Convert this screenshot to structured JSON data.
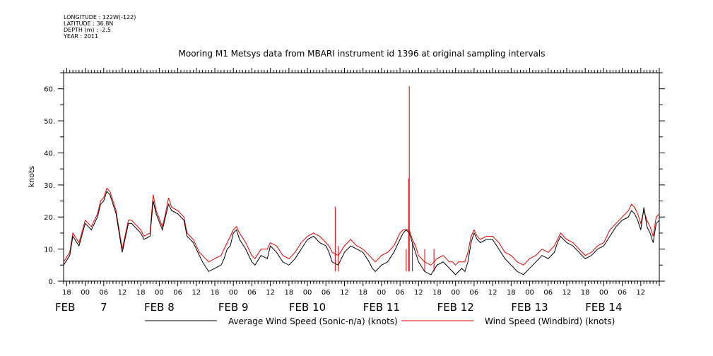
{
  "header": {
    "lines": [
      "LONGITUDE : 122W(-122)",
      "LATITUDE : 36.8N",
      "DEPTH (m) : -2.5",
      "YEAR : 2011"
    ]
  },
  "chart_data": {
    "type": "line",
    "title": "Mooring M1 Metsys data from MBARI instrument id 1396 at original sampling intervals",
    "ylabel": "knots",
    "xlabel": "",
    "ylim": [
      0,
      65
    ],
    "yticks": [
      0,
      10,
      20,
      30,
      40,
      50,
      60
    ],
    "ytick_labels": [
      "0.",
      "10.",
      "20.",
      "30.",
      "40.",
      "50.",
      "60."
    ],
    "xlim_hours": [
      -7,
      186
    ],
    "x_ticks": [
      {
        "h": -6,
        "label": "18"
      },
      {
        "h": 0,
        "label": "00"
      },
      {
        "h": 6,
        "label": "06"
      },
      {
        "h": 12,
        "label": "12"
      },
      {
        "h": 18,
        "label": "18"
      },
      {
        "h": 24,
        "label": "00"
      },
      {
        "h": 30,
        "label": "06"
      },
      {
        "h": 36,
        "label": "12"
      },
      {
        "h": 42,
        "label": "18"
      },
      {
        "h": 48,
        "label": "00"
      },
      {
        "h": 54,
        "label": "06"
      },
      {
        "h": 60,
        "label": "12"
      },
      {
        "h": 66,
        "label": "18"
      },
      {
        "h": 72,
        "label": "00"
      },
      {
        "h": 78,
        "label": "06"
      },
      {
        "h": 84,
        "label": "12"
      },
      {
        "h": 90,
        "label": "18"
      },
      {
        "h": 96,
        "label": "00"
      },
      {
        "h": 102,
        "label": "06"
      },
      {
        "h": 108,
        "label": "12"
      },
      {
        "h": 114,
        "label": "18"
      },
      {
        "h": 120,
        "label": "00"
      },
      {
        "h": 126,
        "label": "06"
      },
      {
        "h": 132,
        "label": "12"
      },
      {
        "h": 138,
        "label": "18"
      },
      {
        "h": 144,
        "label": "00"
      },
      {
        "h": 150,
        "label": "06"
      },
      {
        "h": 156,
        "label": "12"
      },
      {
        "h": 162,
        "label": "18"
      },
      {
        "h": 168,
        "label": "00"
      },
      {
        "h": 174,
        "label": "06"
      },
      {
        "h": 180,
        "label": "12"
      }
    ],
    "date_labels": [
      {
        "h": -6,
        "label": "FEB",
        "anchor": "start"
      },
      {
        "h": 6,
        "label": "7",
        "anchor": "middle"
      },
      {
        "h": 24,
        "label": "FEB 8",
        "anchor": "middle"
      },
      {
        "h": 48,
        "label": "FEB 9",
        "anchor": "middle"
      },
      {
        "h": 72,
        "label": "FEB 10",
        "anchor": "middle"
      },
      {
        "h": 96,
        "label": "FEB 11",
        "anchor": "middle"
      },
      {
        "h": 120,
        "label": "FEB 12",
        "anchor": "middle"
      },
      {
        "h": 144,
        "label": "FEB 13",
        "anchor": "middle"
      },
      {
        "h": 168,
        "label": "FEB 14",
        "anchor": "middle"
      }
    ],
    "series": [
      {
        "name": "Average Wind Speed (Sonic-n/a) (knots)",
        "color": "#000000",
        "x": [
          -7,
          -5,
          -4,
          -2,
          0,
          2,
          4,
          5,
          6,
          7,
          8,
          10,
          11,
          12,
          14,
          15,
          18,
          19,
          21,
          22,
          23,
          25,
          26,
          27,
          28,
          30,
          32,
          33,
          35,
          37,
          38,
          40,
          42,
          44,
          45,
          46,
          47,
          48,
          49,
          50,
          52,
          54,
          55,
          57,
          59,
          60,
          62,
          64,
          66,
          68,
          70,
          72,
          74,
          76,
          78,
          79,
          80,
          82,
          84,
          86,
          88,
          90,
          92,
          93,
          94,
          96,
          98,
          100,
          101,
          102,
          103,
          104,
          105,
          106,
          107,
          108,
          110,
          112,
          114,
          116,
          118,
          119,
          120,
          121,
          122,
          123,
          124,
          125,
          126,
          127,
          128,
          130,
          132,
          134,
          136,
          138,
          140,
          142,
          144,
          146,
          148,
          150,
          152,
          153,
          154,
          156,
          158,
          160,
          162,
          164,
          166,
          168,
          170,
          172,
          174,
          176,
          177,
          178,
          179,
          180,
          181,
          182,
          183,
          184,
          185,
          186
        ],
        "y": [
          5,
          8,
          14,
          11,
          18,
          16,
          20,
          24,
          25,
          28,
          27,
          21,
          15,
          9,
          18,
          18,
          15,
          13,
          14,
          25,
          21,
          16,
          20,
          24,
          22,
          21,
          19,
          14,
          12,
          8,
          6,
          3,
          4,
          5,
          7,
          10,
          11,
          15,
          16,
          13,
          10,
          6,
          5,
          8,
          7,
          11,
          9,
          6,
          5,
          7,
          10,
          13,
          14,
          12,
          11,
          9,
          6,
          5,
          9,
          11,
          10,
          9,
          6,
          4,
          3,
          5,
          6,
          9,
          11,
          13,
          15,
          16,
          15,
          12,
          9,
          6,
          3,
          2,
          5,
          6,
          4,
          3,
          2,
          3,
          4,
          3,
          6,
          12,
          15,
          13,
          12,
          13,
          13,
          10,
          7,
          5,
          3,
          2,
          4,
          6,
          8,
          7,
          9,
          12,
          14,
          12,
          11,
          9,
          7,
          8,
          10,
          11,
          14,
          17,
          19,
          20,
          22,
          21,
          19,
          16,
          23,
          17,
          15,
          12,
          18,
          19
        ]
      },
      {
        "name": "Wind Speed (Windbird) (knots)",
        "color": "#e00000",
        "x": [
          -7,
          -5,
          -4,
          -2,
          0,
          2,
          4,
          5,
          6,
          7,
          8,
          10,
          11,
          12,
          14,
          15,
          18,
          19,
          21,
          22,
          23,
          25,
          26,
          27,
          28,
          30,
          32,
          33,
          35,
          37,
          38,
          40,
          42,
          44,
          45,
          46,
          47,
          48,
          49,
          50,
          52,
          54,
          55,
          57,
          59,
          60,
          62,
          64,
          66,
          68,
          70,
          72,
          74,
          76,
          78,
          79,
          80,
          82,
          84,
          86,
          88,
          90,
          92,
          93,
          94,
          96,
          98,
          100,
          101,
          102,
          103,
          104,
          105,
          106,
          107,
          108,
          110,
          112,
          114,
          116,
          118,
          119,
          120,
          121,
          122,
          123,
          124,
          125,
          126,
          127,
          128,
          130,
          132,
          134,
          136,
          138,
          140,
          142,
          144,
          146,
          148,
          150,
          152,
          153,
          154,
          156,
          158,
          160,
          162,
          164,
          166,
          168,
          170,
          172,
          174,
          176,
          177,
          178,
          179,
          180,
          181,
          182,
          183,
          184,
          185,
          186
        ],
        "y": [
          6,
          9,
          15,
          12,
          19,
          17,
          21,
          25,
          26,
          29,
          28,
          22,
          16,
          10,
          19,
          19,
          16,
          14,
          15,
          27,
          22,
          17,
          21,
          26,
          23,
          22,
          20,
          15,
          13,
          9,
          8,
          6,
          7,
          8,
          10,
          12,
          14,
          16,
          17,
          15,
          12,
          8,
          7,
          10,
          10,
          12,
          11,
          8,
          7,
          9,
          12,
          14,
          15,
          14,
          12,
          11,
          9,
          8,
          11,
          13,
          11,
          10,
          8,
          7,
          6,
          8,
          9,
          11,
          13,
          15,
          16,
          16,
          16,
          13,
          11,
          8,
          6,
          5,
          7,
          8,
          6,
          6,
          5,
          6,
          6,
          6,
          9,
          14,
          16,
          14,
          13,
          14,
          14,
          12,
          9,
          8,
          6,
          5,
          7,
          8,
          10,
          9,
          11,
          13,
          15,
          13,
          12,
          10,
          8,
          9,
          11,
          12,
          16,
          18,
          20,
          22,
          24,
          23,
          21,
          18,
          22,
          19,
          17,
          14,
          20,
          21
        ],
        "spikes": [
          {
            "x": 81,
            "y": 23.2
          },
          {
            "x": 105,
            "y": 60.8
          },
          {
            "x": 104.8,
            "y": 32
          },
          {
            "x": 106,
            "y": 12
          },
          {
            "x": 104,
            "y": 10
          },
          {
            "x": 82,
            "y": 11
          },
          {
            "x": 110,
            "y": 10
          },
          {
            "x": 113,
            "y": 10
          }
        ]
      }
    ],
    "legend": [
      {
        "label": "Average Wind Speed (Sonic-n/a) (knots)",
        "color": "#000000"
      },
      {
        "label": "Wind Speed (Windbird) (knots)",
        "color": "#e00000"
      }
    ],
    "legend_position": "bottom"
  }
}
